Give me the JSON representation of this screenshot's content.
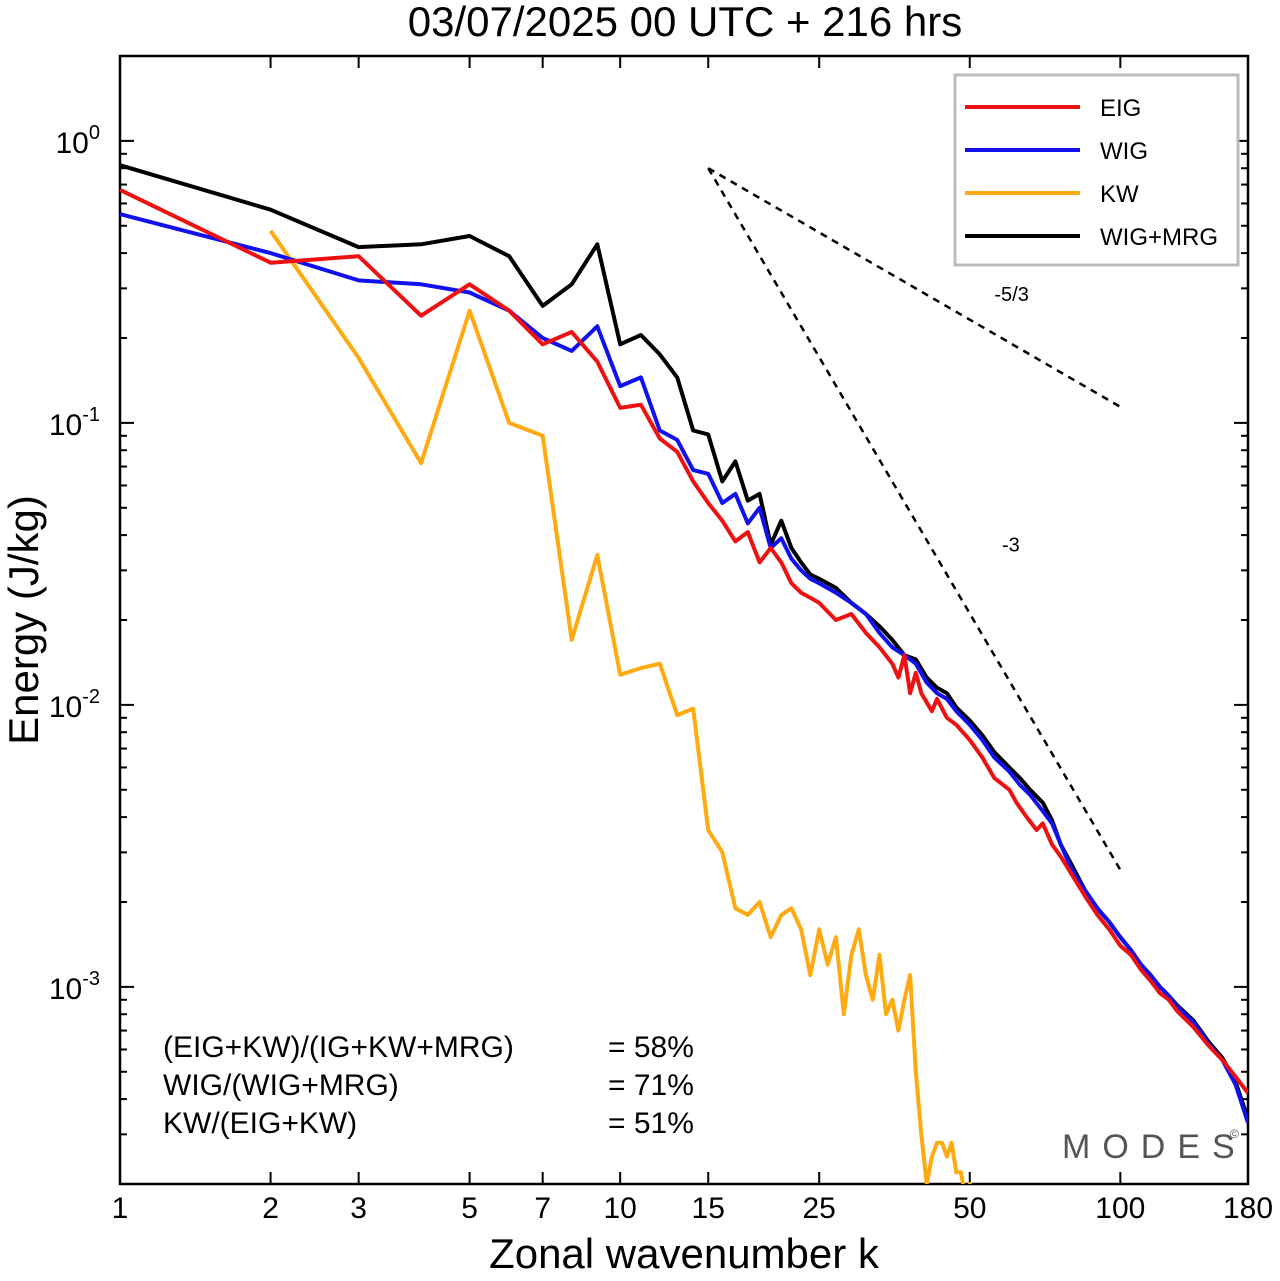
{
  "chart_data": {
    "type": "line",
    "title": "03/07/2025  00 UTC  + 216 hrs",
    "xlabel": "Zonal wavenumber k",
    "ylabel": "Energy (J/kg)",
    "xscale": "log",
    "yscale": "log",
    "xlim": [
      1,
      180
    ],
    "ylim": [
      0.0002,
      2.0
    ],
    "grid": false,
    "legend_position": "top-right",
    "x_ticks": [
      {
        "value": 1,
        "label": "1"
      },
      {
        "value": 2,
        "label": "2"
      },
      {
        "value": 3,
        "label": "3"
      },
      {
        "value": 5,
        "label": "5"
      },
      {
        "value": 7,
        "label": "7"
      },
      {
        "value": 10,
        "label": "10"
      },
      {
        "value": 15,
        "label": "15"
      },
      {
        "value": 25,
        "label": "25"
      },
      {
        "value": 50,
        "label": "50"
      },
      {
        "value": 100,
        "label": "100"
      },
      {
        "value": 180,
        "label": "180"
      }
    ],
    "y_ticks": [
      {
        "value": 1,
        "base": "10",
        "exp": "0"
      },
      {
        "value": 0.1,
        "base": "10",
        "exp": "-1"
      },
      {
        "value": 0.01,
        "base": "10",
        "exp": "-2"
      },
      {
        "value": 0.001,
        "base": "10",
        "exp": "-3"
      }
    ],
    "series": [
      {
        "name": "EIG",
        "color": "#ee1111",
        "points": [
          [
            1,
            0.67
          ],
          [
            2,
            0.37
          ],
          [
            3,
            0.39
          ],
          [
            4,
            0.24
          ],
          [
            5,
            0.31
          ],
          [
            6,
            0.25
          ],
          [
            7,
            0.19
          ],
          [
            8,
            0.21
          ],
          [
            9,
            0.165
          ],
          [
            10,
            0.113
          ],
          [
            11,
            0.116
          ],
          [
            12,
            0.088
          ],
          [
            13,
            0.079
          ],
          [
            14,
            0.062
          ],
          [
            15,
            0.052
          ],
          [
            16,
            0.045
          ],
          [
            17,
            0.038
          ],
          [
            18,
            0.041
          ],
          [
            19,
            0.032
          ],
          [
            20,
            0.036
          ],
          [
            21,
            0.032
          ],
          [
            22,
            0.027
          ],
          [
            23,
            0.025
          ],
          [
            24,
            0.024
          ],
          [
            25,
            0.023
          ],
          [
            27,
            0.02
          ],
          [
            29,
            0.021
          ],
          [
            31,
            0.018
          ],
          [
            33,
            0.016
          ],
          [
            35,
            0.014
          ],
          [
            36,
            0.0125
          ],
          [
            37,
            0.015
          ],
          [
            38,
            0.011
          ],
          [
            39,
            0.013
          ],
          [
            40,
            0.011
          ],
          [
            42,
            0.0095
          ],
          [
            43,
            0.0105
          ],
          [
            45,
            0.009
          ],
          [
            47,
            0.0085
          ],
          [
            50,
            0.0075
          ],
          [
            53,
            0.0065
          ],
          [
            56,
            0.0055
          ],
          [
            60,
            0.005
          ],
          [
            62,
            0.0045
          ],
          [
            65,
            0.004
          ],
          [
            68,
            0.0036
          ],
          [
            70,
            0.0038
          ],
          [
            73,
            0.0032
          ],
          [
            76,
            0.0029
          ],
          [
            80,
            0.0025
          ],
          [
            85,
            0.0021
          ],
          [
            90,
            0.0018
          ],
          [
            95,
            0.0016
          ],
          [
            100,
            0.0014
          ],
          [
            105,
            0.0013
          ],
          [
            110,
            0.00115
          ],
          [
            115,
            0.00105
          ],
          [
            120,
            0.00095
          ],
          [
            125,
            0.0009
          ],
          [
            130,
            0.00082
          ],
          [
            140,
            0.00072
          ],
          [
            150,
            0.00062
          ],
          [
            160,
            0.00055
          ],
          [
            170,
            0.00048
          ],
          [
            180,
            0.00042
          ]
        ]
      },
      {
        "name": "WIG",
        "color": "#1111ee",
        "points": [
          [
            1,
            0.55
          ],
          [
            2,
            0.4
          ],
          [
            3,
            0.32
          ],
          [
            4,
            0.31
          ],
          [
            5,
            0.29
          ],
          [
            6,
            0.25
          ],
          [
            7,
            0.2
          ],
          [
            8,
            0.18
          ],
          [
            9,
            0.22
          ],
          [
            10,
            0.135
          ],
          [
            11,
            0.145
          ],
          [
            12,
            0.094
          ],
          [
            13,
            0.087
          ],
          [
            14,
            0.068
          ],
          [
            15,
            0.066
          ],
          [
            16,
            0.052
          ],
          [
            17,
            0.056
          ],
          [
            18,
            0.044
          ],
          [
            19,
            0.05
          ],
          [
            20,
            0.036
          ],
          [
            21,
            0.039
          ],
          [
            22,
            0.033
          ],
          [
            23,
            0.03
          ],
          [
            24,
            0.028
          ],
          [
            25,
            0.027
          ],
          [
            27,
            0.025
          ],
          [
            29,
            0.023
          ],
          [
            31,
            0.021
          ],
          [
            33,
            0.018
          ],
          [
            35,
            0.016
          ],
          [
            37,
            0.015
          ],
          [
            39,
            0.014
          ],
          [
            41,
            0.012
          ],
          [
            43,
            0.011
          ],
          [
            45,
            0.0105
          ],
          [
            47,
            0.0095
          ],
          [
            50,
            0.0085
          ],
          [
            53,
            0.0075
          ],
          [
            56,
            0.0065
          ],
          [
            60,
            0.0058
          ],
          [
            63,
            0.0052
          ],
          [
            66,
            0.0048
          ],
          [
            70,
            0.0042
          ],
          [
            73,
            0.0038
          ],
          [
            76,
            0.0032
          ],
          [
            80,
            0.0026
          ],
          [
            85,
            0.0022
          ],
          [
            90,
            0.0019
          ],
          [
            95,
            0.0017
          ],
          [
            100,
            0.0015
          ],
          [
            105,
            0.00135
          ],
          [
            110,
            0.0012
          ],
          [
            115,
            0.0011
          ],
          [
            120,
            0.001
          ],
          [
            125,
            0.00093
          ],
          [
            130,
            0.00085
          ],
          [
            140,
            0.00075
          ],
          [
            150,
            0.00063
          ],
          [
            160,
            0.00055
          ],
          [
            170,
            0.00045
          ],
          [
            180,
            0.00033
          ]
        ]
      },
      {
        "name": "KW",
        "color": "#ffaa11",
        "points": [
          [
            2,
            0.48
          ],
          [
            3,
            0.17
          ],
          [
            4,
            0.072
          ],
          [
            5,
            0.25
          ],
          [
            6,
            0.1
          ],
          [
            7,
            0.09
          ],
          [
            8,
            0.017
          ],
          [
            9,
            0.034
          ],
          [
            10,
            0.0128
          ],
          [
            11,
            0.0135
          ],
          [
            12,
            0.014
          ],
          [
            13,
            0.0092
          ],
          [
            14,
            0.0097
          ],
          [
            15,
            0.0036
          ],
          [
            16,
            0.003
          ],
          [
            17,
            0.0019
          ],
          [
            18,
            0.0018
          ],
          [
            19,
            0.002
          ],
          [
            20,
            0.0015
          ],
          [
            21,
            0.0018
          ],
          [
            22,
            0.0019
          ],
          [
            23,
            0.0016
          ],
          [
            24,
            0.0011
          ],
          [
            25,
            0.0016
          ],
          [
            26,
            0.0012
          ],
          [
            27,
            0.0015
          ],
          [
            28,
            0.0008
          ],
          [
            29,
            0.0013
          ],
          [
            30,
            0.0016
          ],
          [
            31,
            0.0011
          ],
          [
            32,
            0.0009
          ],
          [
            33,
            0.0013
          ],
          [
            34,
            0.0008
          ],
          [
            35,
            0.0009
          ],
          [
            36,
            0.0007
          ],
          [
            37,
            0.0009
          ],
          [
            38,
            0.0011
          ],
          [
            39,
            0.0005
          ],
          [
            40,
            0.0003
          ],
          [
            41,
            0.0002
          ],
          [
            42,
            0.00025
          ],
          [
            43,
            0.00028
          ],
          [
            44,
            0.00028
          ],
          [
            45,
            0.00025
          ],
          [
            46,
            0.00028
          ],
          [
            47,
            0.00022
          ],
          [
            48,
            0.00022
          ],
          [
            49,
            0.00018
          ],
          [
            50,
            0.0002
          ],
          [
            51,
            0.00019
          ],
          [
            52,
            0.00015
          ]
        ]
      },
      {
        "name": "WIG+MRG",
        "color": "#000000",
        "points": [
          [
            1,
            0.82
          ],
          [
            2,
            0.57
          ],
          [
            3,
            0.42
          ],
          [
            4,
            0.43
          ],
          [
            5,
            0.46
          ],
          [
            6,
            0.39
          ],
          [
            7,
            0.26
          ],
          [
            8,
            0.31
          ],
          [
            9,
            0.43
          ],
          [
            10,
            0.19
          ],
          [
            11,
            0.205
          ],
          [
            12,
            0.175
          ],
          [
            13,
            0.145
          ],
          [
            14,
            0.094
          ],
          [
            15,
            0.091
          ],
          [
            16,
            0.062
          ],
          [
            17,
            0.073
          ],
          [
            18,
            0.053
          ],
          [
            19,
            0.056
          ],
          [
            20,
            0.037
          ],
          [
            21,
            0.045
          ],
          [
            22,
            0.036
          ],
          [
            23,
            0.032
          ],
          [
            24,
            0.029
          ],
          [
            25,
            0.028
          ],
          [
            27,
            0.026
          ],
          [
            29,
            0.023
          ],
          [
            31,
            0.021
          ],
          [
            33,
            0.019
          ],
          [
            35,
            0.017
          ],
          [
            37,
            0.015
          ],
          [
            39,
            0.0145
          ],
          [
            41,
            0.0125
          ],
          [
            43,
            0.0115
          ],
          [
            45,
            0.011
          ],
          [
            47,
            0.0098
          ],
          [
            50,
            0.0088
          ],
          [
            53,
            0.0078
          ],
          [
            56,
            0.0068
          ],
          [
            60,
            0.006
          ],
          [
            63,
            0.0055
          ],
          [
            66,
            0.005
          ],
          [
            70,
            0.0045
          ],
          [
            73,
            0.0039
          ],
          [
            76,
            0.0032
          ],
          [
            80,
            0.0027
          ],
          [
            85,
            0.0022
          ],
          [
            90,
            0.0019
          ],
          [
            95,
            0.0017
          ],
          [
            100,
            0.0015
          ],
          [
            105,
            0.00135
          ],
          [
            110,
            0.0012
          ],
          [
            115,
            0.0011
          ],
          [
            120,
            0.001
          ],
          [
            125,
            0.00093
          ],
          [
            130,
            0.00086
          ],
          [
            140,
            0.00076
          ],
          [
            150,
            0.00064
          ],
          [
            160,
            0.00056
          ],
          [
            170,
            0.00046
          ],
          [
            180,
            0.00034
          ]
        ]
      }
    ],
    "reference_lines": [
      {
        "label": "-5/3",
        "points": [
          [
            15,
            0.8
          ],
          [
            100,
            0.114
          ]
        ],
        "label_at": [
          56,
          0.27
        ]
      },
      {
        "label": "-3",
        "points": [
          [
            15,
            0.8
          ],
          [
            100,
            0.0026
          ]
        ],
        "label_at": [
          58,
          0.035
        ]
      }
    ],
    "annotations": [
      {
        "label": "(EIG+KW)/(IG+KW+MRG)",
        "value": "= 58%"
      },
      {
        "label": "WIG/(WIG+MRG)",
        "value": "= 71%"
      },
      {
        "label": "KW/(EIG+KW)",
        "value": "= 51%"
      }
    ],
    "watermark": "MODES",
    "watermark_mark": "©"
  }
}
